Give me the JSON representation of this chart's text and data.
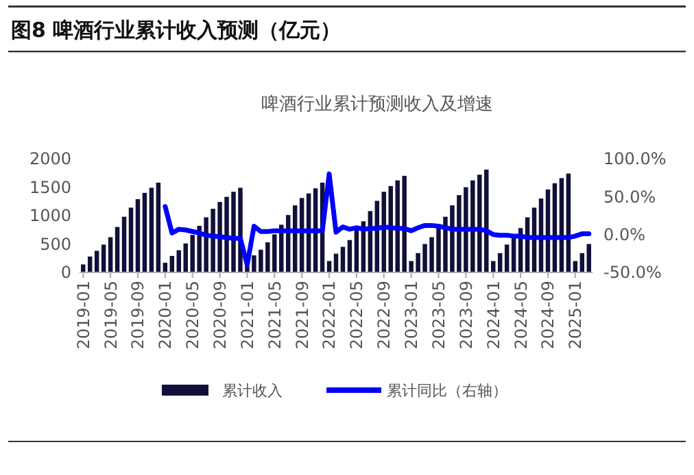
{
  "chart_data": {
    "type": "bar",
    "title": "图8  啤酒行业累计收入预测（亿元）",
    "subtitle": "啤酒行业累计预测收入及增速",
    "categories": [
      "2019-01",
      null,
      null,
      null,
      "2019-05",
      null,
      null,
      null,
      "2019-09",
      null,
      null,
      null,
      "2020-01",
      null,
      null,
      null,
      "2020-05",
      null,
      null,
      null,
      "2020-09",
      null,
      null,
      null,
      "2021-01",
      null,
      null,
      null,
      "2021-05",
      null,
      null,
      null,
      "2021-09",
      null,
      null,
      null,
      "2022-01",
      null,
      null,
      null,
      "2022-05",
      null,
      null,
      null,
      "2022-09",
      null,
      null,
      null,
      "2023-01",
      null,
      null,
      null,
      "2023-05",
      null,
      null,
      null,
      "2023-09",
      null,
      null,
      null,
      "2024-01",
      null,
      null,
      null,
      "2024-05",
      null,
      null,
      null,
      "2024-09",
      null,
      null,
      null,
      "2025-01",
      null,
      null
    ],
    "series": [
      {
        "name": "累计收入",
        "color": "#10103a",
        "values": [
          140,
          280,
          380,
          490,
          620,
          800,
          980,
          1140,
          1290,
          1400,
          1490,
          1580,
          170,
          290,
          390,
          510,
          660,
          820,
          970,
          1120,
          1240,
          1330,
          1420,
          1490,
          150,
          300,
          400,
          530,
          670,
          840,
          1010,
          1180,
          1310,
          1390,
          1480,
          1580,
          200,
          330,
          450,
          570,
          800,
          900,
          1080,
          1260,
          1420,
          1520,
          1620,
          1700,
          200,
          340,
          500,
          620,
          840,
          980,
          1180,
          1360,
          1500,
          1620,
          1720,
          1810,
          200,
          340,
          490,
          610,
          780,
          970,
          1140,
          1300,
          1460,
          1570,
          1660,
          1740,
          200,
          340,
          500
        ]
      },
      {
        "name": "累计同比（右轴）",
        "type": "line",
        "axis": "y2",
        "color": "#0000ff",
        "values": [
          null,
          null,
          null,
          null,
          null,
          null,
          null,
          null,
          null,
          null,
          null,
          null,
          37,
          2,
          7,
          6,
          4,
          2,
          -1,
          -2,
          -3,
          -4,
          -5,
          -5,
          -40,
          11,
          4,
          4,
          5,
          5,
          5,
          5,
          5,
          5,
          5,
          5,
          80,
          3,
          10,
          7,
          9,
          7,
          8,
          8,
          10,
          9,
          8,
          8,
          5,
          9,
          12,
          12,
          11,
          9,
          7,
          7,
          7,
          7,
          7,
          5,
          0,
          -1,
          -1,
          -2,
          -2,
          -4,
          -4,
          -4,
          -4,
          -4,
          -4,
          -4,
          -2,
          1,
          1
        ]
      }
    ],
    "ylim": [
      0,
      2000
    ],
    "yticks": [
      0,
      500,
      1000,
      1500,
      2000
    ],
    "y2lim": [
      -50,
      100
    ],
    "y2ticks": [
      {
        "value": -50,
        "label": "-50.0%"
      },
      {
        "value": 0,
        "label": "0.0%"
      },
      {
        "value": 50,
        "label": "50.0%"
      },
      {
        "value": 100,
        "label": "100.0%"
      }
    ],
    "grid": false,
    "legend": "bottom"
  }
}
